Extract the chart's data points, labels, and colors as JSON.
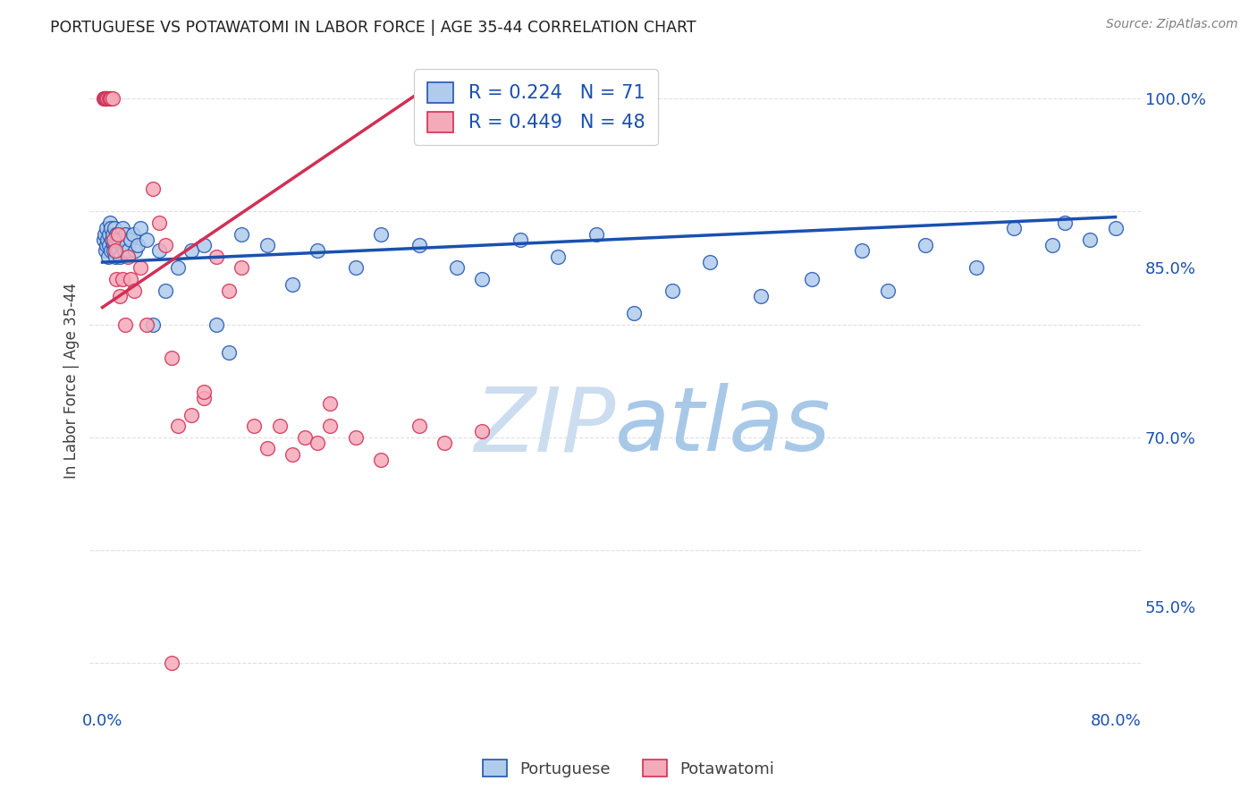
{
  "title": "PORTUGUESE VS POTAWATOMI IN LABOR FORCE | AGE 35-44 CORRELATION CHART",
  "source": "Source: ZipAtlas.com",
  "ylabel": "In Labor Force | Age 35-44",
  "xlim": [
    -1.0,
    82.0
  ],
  "ylim": [
    46.0,
    104.0
  ],
  "yticks": [
    55.0,
    70.0,
    85.0,
    100.0
  ],
  "ytick_labels": [
    "55.0%",
    "70.0%",
    "85.0%",
    "100.0%"
  ],
  "xtick_positions": [
    0,
    10,
    20,
    30,
    40,
    50,
    60,
    70,
    80
  ],
  "xtick_labels": [
    "0.0%",
    "",
    "",
    "",
    "",
    "",
    "",
    "",
    "80.0%"
  ],
  "portuguese_fill": "#b0ccec",
  "portuguese_edge": "#2255b0",
  "potawatomi_fill": "#f5aaba",
  "potawatomi_edge": "#d03055",
  "portuguese_line": "#1a50b0",
  "potawatomi_line": "#d03055",
  "r_portuguese": 0.224,
  "n_portuguese": 71,
  "r_potawatomi": 0.449,
  "n_potawatomi": 48,
  "background_color": "#ffffff",
  "grid_color": "#e0e0e0",
  "title_color": "#202020",
  "axis_tick_color": "#1a50b0",
  "watermark_color": "#d0e4f8",
  "portuguese_x": [
    0.1,
    0.2,
    0.25,
    0.3,
    0.35,
    0.4,
    0.45,
    0.5,
    0.55,
    0.6,
    0.65,
    0.7,
    0.75,
    0.8,
    0.85,
    0.9,
    0.95,
    1.0,
    1.05,
    1.1,
    1.15,
    1.2,
    1.25,
    1.3,
    1.4,
    1.5,
    1.6,
    1.7,
    1.8,
    1.9,
    2.0,
    2.2,
    2.4,
    2.6,
    2.8,
    3.0,
    3.5,
    4.0,
    4.5,
    5.0,
    6.0,
    7.0,
    8.0,
    9.0,
    10.0,
    11.0,
    13.0,
    15.0,
    17.0,
    20.0,
    22.0,
    25.0,
    28.0,
    30.0,
    33.0,
    36.0,
    39.0,
    42.0,
    45.0,
    48.0,
    52.0,
    56.0,
    60.0,
    65.0,
    69.0,
    72.0,
    76.0,
    78.0,
    80.0,
    62.0,
    75.0
  ],
  "portuguese_y": [
    87.5,
    88.0,
    86.5,
    87.0,
    88.5,
    87.5,
    86.0,
    88.0,
    87.0,
    89.0,
    88.5,
    86.5,
    87.5,
    88.0,
    87.0,
    86.5,
    88.5,
    87.0,
    86.0,
    88.0,
    87.5,
    86.5,
    88.0,
    87.5,
    86.0,
    87.0,
    88.5,
    86.5,
    88.0,
    87.0,
    86.5,
    87.5,
    88.0,
    86.5,
    87.0,
    88.5,
    87.5,
    80.0,
    86.5,
    83.0,
    85.0,
    86.5,
    87.0,
    80.0,
    77.5,
    88.0,
    87.0,
    83.5,
    86.5,
    85.0,
    88.0,
    87.0,
    85.0,
    84.0,
    87.5,
    86.0,
    88.0,
    81.0,
    83.0,
    85.5,
    82.5,
    84.0,
    86.5,
    87.0,
    85.0,
    88.5,
    89.0,
    87.5,
    88.5,
    83.0,
    87.0
  ],
  "potawatomi_x": [
    0.1,
    0.15,
    0.2,
    0.25,
    0.3,
    0.35,
    0.4,
    0.5,
    0.6,
    0.7,
    0.8,
    0.9,
    1.0,
    1.1,
    1.2,
    1.4,
    1.6,
    1.8,
    2.0,
    2.2,
    2.5,
    3.0,
    3.5,
    4.0,
    4.5,
    5.0,
    5.5,
    6.0,
    7.0,
    8.0,
    9.0,
    10.0,
    11.0,
    12.0,
    13.0,
    14.0,
    15.0,
    16.0,
    17.0,
    18.0,
    20.0,
    22.0,
    25.0,
    27.0,
    30.0,
    8.0,
    18.0,
    5.5
  ],
  "potawatomi_y": [
    100.0,
    100.0,
    100.0,
    100.0,
    100.0,
    100.0,
    100.0,
    100.0,
    100.0,
    100.0,
    100.0,
    87.5,
    86.5,
    84.0,
    88.0,
    82.5,
    84.0,
    80.0,
    86.0,
    84.0,
    83.0,
    85.0,
    80.0,
    92.0,
    89.0,
    87.0,
    50.0,
    71.0,
    72.0,
    73.5,
    86.0,
    83.0,
    85.0,
    71.0,
    69.0,
    71.0,
    68.5,
    70.0,
    69.5,
    73.0,
    70.0,
    68.0,
    71.0,
    69.5,
    70.5,
    74.0,
    71.0,
    77.0
  ],
  "port_line_x": [
    0.0,
    80.0
  ],
  "port_line_y": [
    85.5,
    89.5
  ],
  "pot_line_x": [
    0.0,
    25.0
  ],
  "pot_line_y": [
    81.5,
    100.5
  ]
}
